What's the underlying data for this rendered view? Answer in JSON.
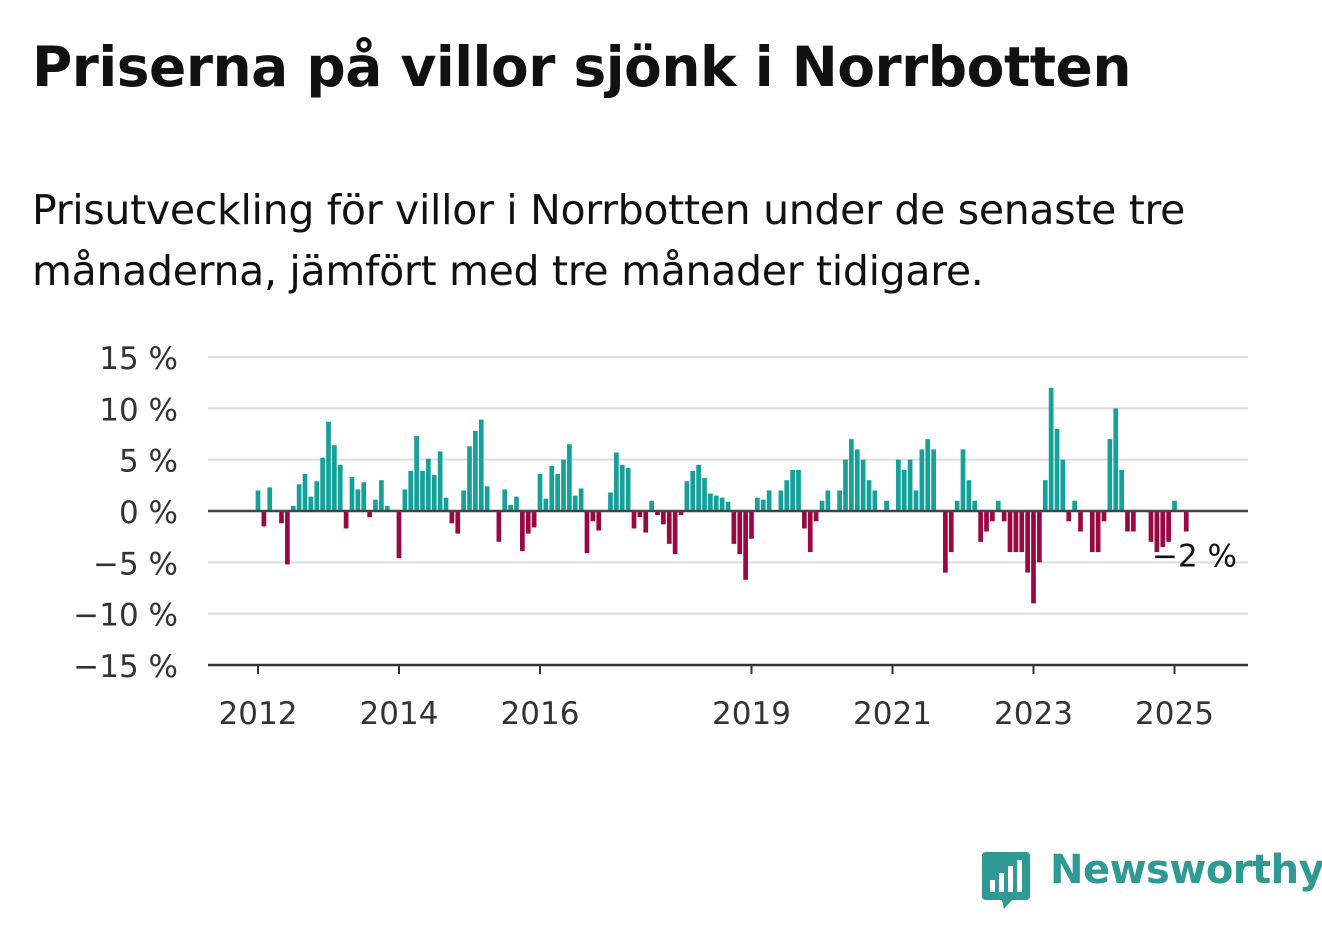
{
  "title": "Priserna på villor sjönk i Norrbotten",
  "subtitle": "Prisutveckling för villor i Norrbotten under de senaste tre månaderna, jämfört med tre månader tidigare.",
  "brand": {
    "name": "Newsworthy",
    "color": "#2f9a93",
    "icon": "bar-chart-logo-icon"
  },
  "colors": {
    "positive": "#14a19a",
    "negative": "#9a0842",
    "grid": "#dddddd",
    "zero_line": "#444444"
  },
  "chart_data": {
    "type": "bar",
    "title": "",
    "xlabel": "",
    "ylabel": "",
    "ylim": [
      -15,
      15
    ],
    "yticks": [
      15,
      10,
      5,
      0,
      -5,
      -10,
      -15
    ],
    "ytick_labels": [
      "15 %",
      "10 %",
      "5 %",
      "0 %",
      "−5 %",
      "−10 %",
      "−15 %"
    ],
    "x_start": "2012-01",
    "x_end": "2025-12",
    "xticks": [
      "2012",
      "2014",
      "2016",
      "2019",
      "2021",
      "2023",
      "2025"
    ],
    "grid": true,
    "last_value_label": "−2 %",
    "series": [
      {
        "values": [
          2,
          -1.5,
          2.3,
          0,
          -1.2,
          -5.2,
          0.5,
          2.6,
          3.6,
          1.4,
          2.9,
          5.2,
          8.7,
          6.4,
          4.5,
          -1.7,
          3.3,
          2.1,
          2.8,
          -0.6,
          1.1,
          3,
          0.5,
          0,
          -4.6,
          2.1,
          3.9,
          7.3,
          3.9,
          5.1,
          3.5,
          5.8,
          1.3,
          -1.2,
          -2.2,
          2,
          6.3,
          7.8,
          8.9,
          2.4,
          0,
          -3,
          2.1,
          0.6,
          1.4,
          -3.9,
          -2.2,
          -1.6,
          3.6,
          1.2,
          4.4,
          3.6,
          5,
          6.5,
          1.5,
          2.2,
          -4.1,
          -1,
          -1.9,
          0,
          1.8,
          5.7,
          4.5,
          4.2,
          -1.7,
          -0.6,
          -2.1,
          1,
          -0.4,
          -1.3,
          -3.2,
          -4.2,
          -0.4,
          2.9,
          3.9,
          4.5,
          3.2,
          1.7,
          1.5,
          1.3,
          0.9,
          -3.2,
          -4.2,
          -6.7,
          -2.7,
          1.3,
          1.1,
          2,
          0,
          2,
          3,
          4,
          4,
          -1.7,
          -4,
          -1,
          1,
          2,
          0,
          2,
          5,
          7,
          6,
          5,
          3,
          2,
          0,
          1,
          0,
          5,
          4,
          5,
          2,
          6,
          7,
          6,
          0,
          -6,
          -4,
          1,
          6,
          3,
          1,
          -3,
          -2,
          -1,
          1,
          -1,
          -4,
          -4,
          -4,
          -6,
          -9,
          -5,
          3,
          12,
          8,
          5,
          -1,
          1,
          -2,
          0,
          -4,
          -4,
          -1,
          7,
          10,
          4,
          -2,
          -2,
          0,
          0,
          -3,
          -4,
          -3.5,
          -3,
          1,
          0,
          -2
        ]
      }
    ]
  }
}
